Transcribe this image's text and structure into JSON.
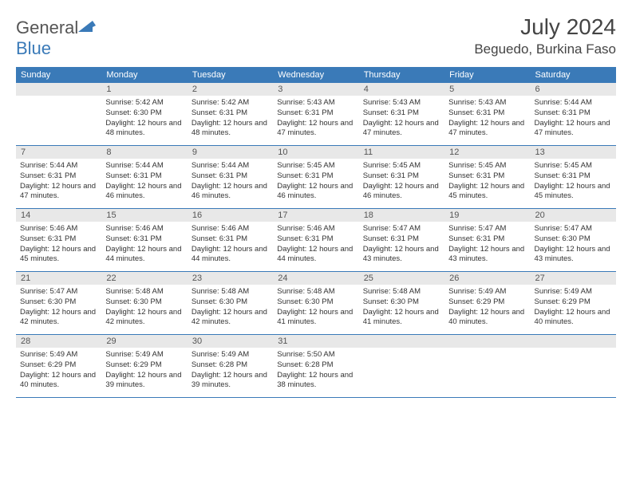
{
  "logo": {
    "text1": "General",
    "text2": "Blue"
  },
  "title": {
    "month": "July 2024",
    "location": "Beguedo, Burkina Faso"
  },
  "weekdays": [
    "Sunday",
    "Monday",
    "Tuesday",
    "Wednesday",
    "Thursday",
    "Friday",
    "Saturday"
  ],
  "colors": {
    "header_bg": "#3a7ab8",
    "header_fg": "#ffffff",
    "daynum_bg": "#e8e8e8",
    "row_border": "#3a7ab8",
    "text": "#333333"
  },
  "typography": {
    "title_fontsize": 28,
    "location_fontsize": 17,
    "weekday_fontsize": 11,
    "daynum_fontsize": 11,
    "body_fontsize": 9.5
  },
  "layout": {
    "columns": 7,
    "rows": 5,
    "first_day_offset": 1
  },
  "days": [
    {
      "n": "1",
      "sunrise": "5:42 AM",
      "sunset": "6:30 PM",
      "daylight": "12 hours and 48 minutes."
    },
    {
      "n": "2",
      "sunrise": "5:42 AM",
      "sunset": "6:31 PM",
      "daylight": "12 hours and 48 minutes."
    },
    {
      "n": "3",
      "sunrise": "5:43 AM",
      "sunset": "6:31 PM",
      "daylight": "12 hours and 47 minutes."
    },
    {
      "n": "4",
      "sunrise": "5:43 AM",
      "sunset": "6:31 PM",
      "daylight": "12 hours and 47 minutes."
    },
    {
      "n": "5",
      "sunrise": "5:43 AM",
      "sunset": "6:31 PM",
      "daylight": "12 hours and 47 minutes."
    },
    {
      "n": "6",
      "sunrise": "5:44 AM",
      "sunset": "6:31 PM",
      "daylight": "12 hours and 47 minutes."
    },
    {
      "n": "7",
      "sunrise": "5:44 AM",
      "sunset": "6:31 PM",
      "daylight": "12 hours and 47 minutes."
    },
    {
      "n": "8",
      "sunrise": "5:44 AM",
      "sunset": "6:31 PM",
      "daylight": "12 hours and 46 minutes."
    },
    {
      "n": "9",
      "sunrise": "5:44 AM",
      "sunset": "6:31 PM",
      "daylight": "12 hours and 46 minutes."
    },
    {
      "n": "10",
      "sunrise": "5:45 AM",
      "sunset": "6:31 PM",
      "daylight": "12 hours and 46 minutes."
    },
    {
      "n": "11",
      "sunrise": "5:45 AM",
      "sunset": "6:31 PM",
      "daylight": "12 hours and 46 minutes."
    },
    {
      "n": "12",
      "sunrise": "5:45 AM",
      "sunset": "6:31 PM",
      "daylight": "12 hours and 45 minutes."
    },
    {
      "n": "13",
      "sunrise": "5:45 AM",
      "sunset": "6:31 PM",
      "daylight": "12 hours and 45 minutes."
    },
    {
      "n": "14",
      "sunrise": "5:46 AM",
      "sunset": "6:31 PM",
      "daylight": "12 hours and 45 minutes."
    },
    {
      "n": "15",
      "sunrise": "5:46 AM",
      "sunset": "6:31 PM",
      "daylight": "12 hours and 44 minutes."
    },
    {
      "n": "16",
      "sunrise": "5:46 AM",
      "sunset": "6:31 PM",
      "daylight": "12 hours and 44 minutes."
    },
    {
      "n": "17",
      "sunrise": "5:46 AM",
      "sunset": "6:31 PM",
      "daylight": "12 hours and 44 minutes."
    },
    {
      "n": "18",
      "sunrise": "5:47 AM",
      "sunset": "6:31 PM",
      "daylight": "12 hours and 43 minutes."
    },
    {
      "n": "19",
      "sunrise": "5:47 AM",
      "sunset": "6:31 PM",
      "daylight": "12 hours and 43 minutes."
    },
    {
      "n": "20",
      "sunrise": "5:47 AM",
      "sunset": "6:30 PM",
      "daylight": "12 hours and 43 minutes."
    },
    {
      "n": "21",
      "sunrise": "5:47 AM",
      "sunset": "6:30 PM",
      "daylight": "12 hours and 42 minutes."
    },
    {
      "n": "22",
      "sunrise": "5:48 AM",
      "sunset": "6:30 PM",
      "daylight": "12 hours and 42 minutes."
    },
    {
      "n": "23",
      "sunrise": "5:48 AM",
      "sunset": "6:30 PM",
      "daylight": "12 hours and 42 minutes."
    },
    {
      "n": "24",
      "sunrise": "5:48 AM",
      "sunset": "6:30 PM",
      "daylight": "12 hours and 41 minutes."
    },
    {
      "n": "25",
      "sunrise": "5:48 AM",
      "sunset": "6:30 PM",
      "daylight": "12 hours and 41 minutes."
    },
    {
      "n": "26",
      "sunrise": "5:49 AM",
      "sunset": "6:29 PM",
      "daylight": "12 hours and 40 minutes."
    },
    {
      "n": "27",
      "sunrise": "5:49 AM",
      "sunset": "6:29 PM",
      "daylight": "12 hours and 40 minutes."
    },
    {
      "n": "28",
      "sunrise": "5:49 AM",
      "sunset": "6:29 PM",
      "daylight": "12 hours and 40 minutes."
    },
    {
      "n": "29",
      "sunrise": "5:49 AM",
      "sunset": "6:29 PM",
      "daylight": "12 hours and 39 minutes."
    },
    {
      "n": "30",
      "sunrise": "5:49 AM",
      "sunset": "6:28 PM",
      "daylight": "12 hours and 39 minutes."
    },
    {
      "n": "31",
      "sunrise": "5:50 AM",
      "sunset": "6:28 PM",
      "daylight": "12 hours and 38 minutes."
    }
  ],
  "labels": {
    "sunrise": "Sunrise:",
    "sunset": "Sunset:",
    "daylight": "Daylight:"
  }
}
